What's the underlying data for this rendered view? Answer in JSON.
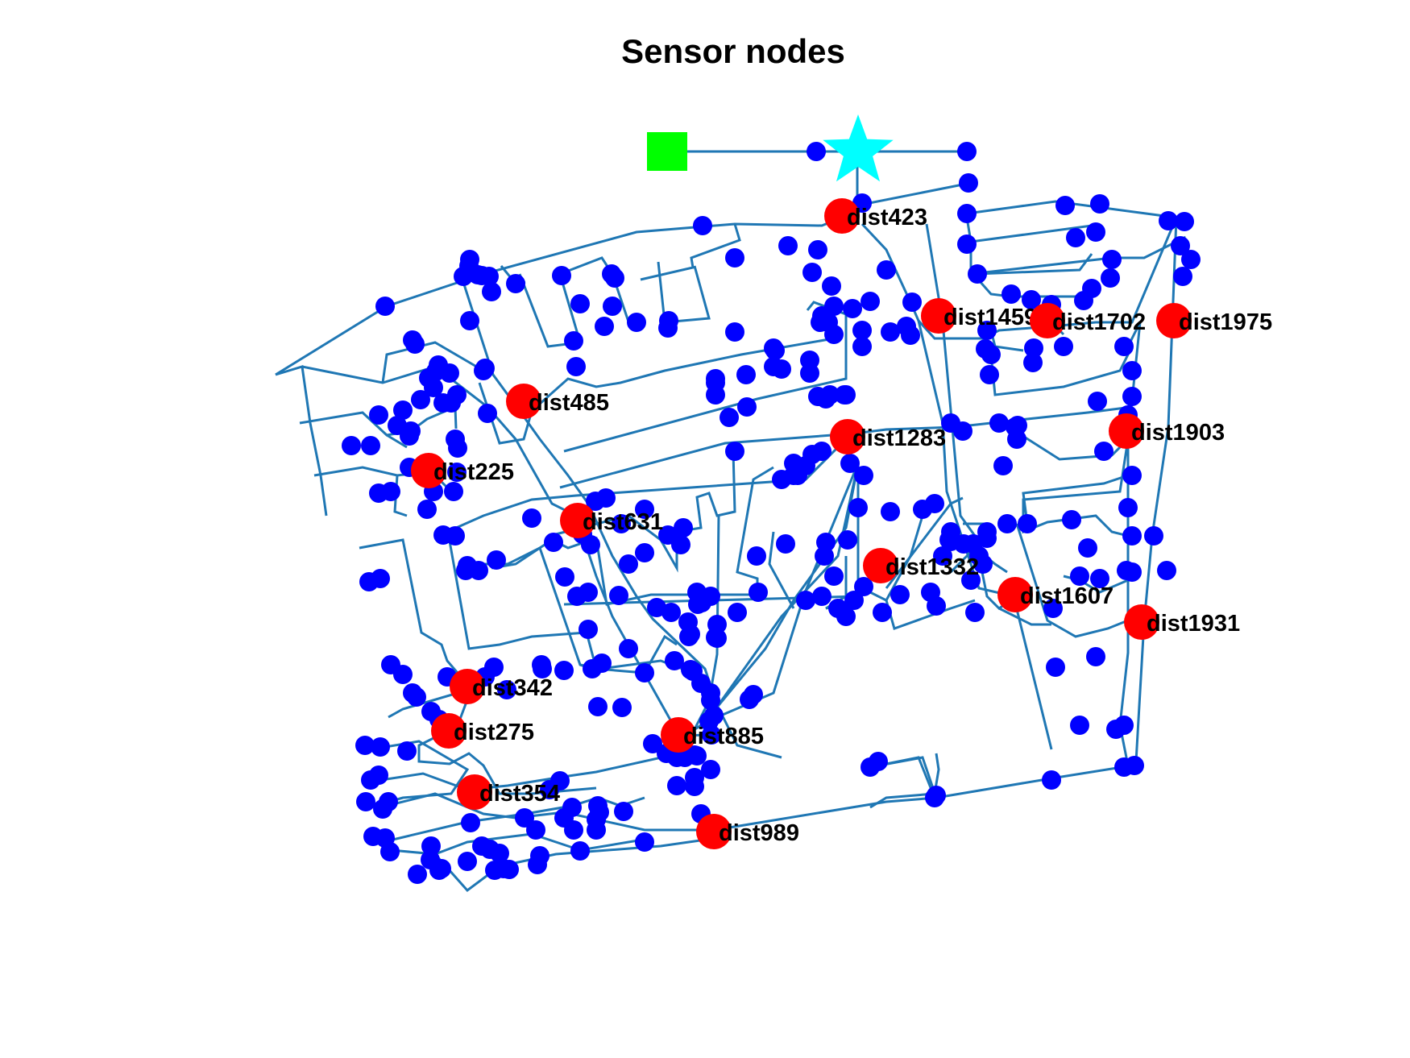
{
  "title": "Sensor nodes",
  "colors": {
    "pipe": "#1f77b4",
    "junction": "#0000ff",
    "sensor": "#ff0000",
    "reservoir": "#00ff00",
    "tank": "#00ffff",
    "label": "#000000"
  },
  "legend": {
    "reservoir": "green-square-icon",
    "tank": "cyan-star-icon"
  },
  "sensors": [
    {
      "id": "dist423",
      "label": "dist423"
    },
    {
      "id": "dist1459",
      "label": "dist1459"
    },
    {
      "id": "dist1702",
      "label": "dist1702"
    },
    {
      "id": "dist1975",
      "label": "dist1975"
    },
    {
      "id": "dist485",
      "label": "dist485"
    },
    {
      "id": "dist1283",
      "label": "dist1283"
    },
    {
      "id": "dist1903",
      "label": "dist1903"
    },
    {
      "id": "dist225",
      "label": "dist225"
    },
    {
      "id": "dist631",
      "label": "dist631"
    },
    {
      "id": "dist1332",
      "label": "dist1332"
    },
    {
      "id": "dist1607",
      "label": "dist1607"
    },
    {
      "id": "dist1931",
      "label": "dist1931"
    },
    {
      "id": "dist342",
      "label": "dist342"
    },
    {
      "id": "dist275",
      "label": "dist275"
    },
    {
      "id": "dist885",
      "label": "dist885"
    },
    {
      "id": "dist354",
      "label": "dist354"
    },
    {
      "id": "dist989",
      "label": "dist989"
    }
  ]
}
